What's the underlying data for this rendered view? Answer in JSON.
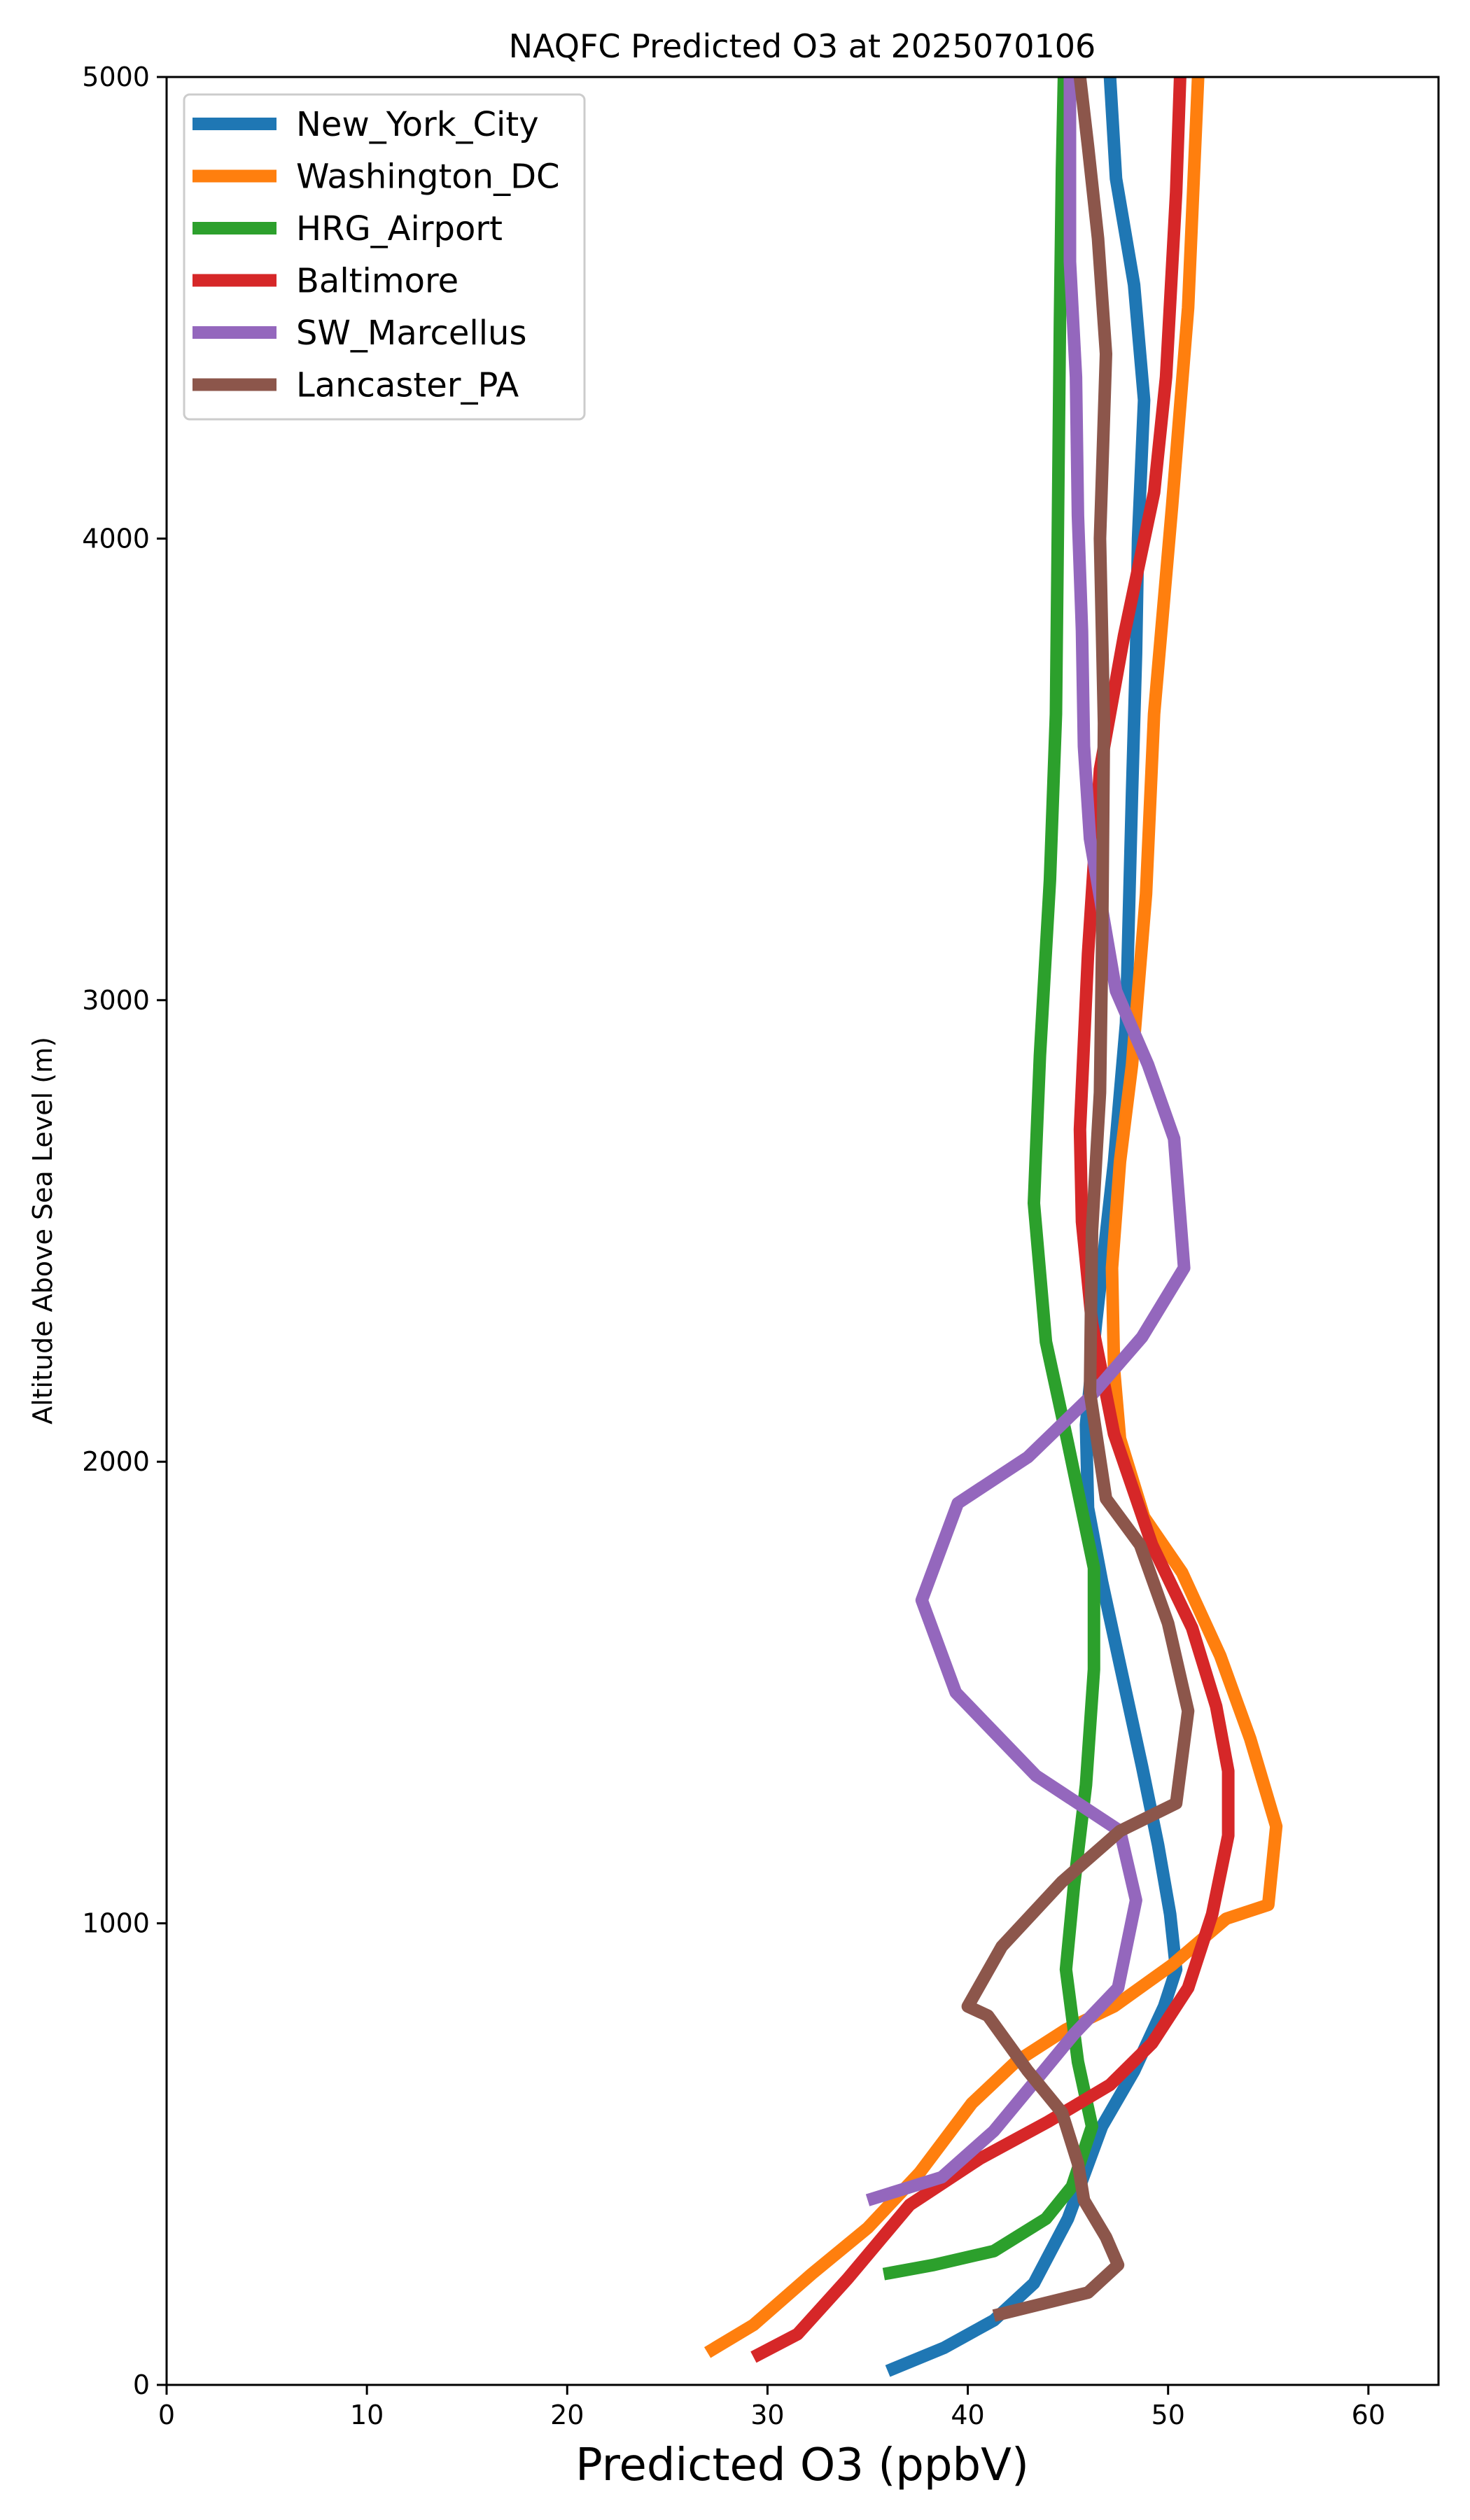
{
  "chart_data": {
    "type": "line",
    "title": "NAQFC Predicted O3 at 2025070106",
    "xlabel": "Predicted O3 (ppbV)",
    "ylabel": "Altitude Above Sea Level (m)",
    "xlim": [
      0,
      63.5
    ],
    "ylim": [
      0,
      5000
    ],
    "xticks": [
      0,
      10,
      20,
      30,
      40,
      50,
      60
    ],
    "yticks": [
      0,
      1000,
      2000,
      3000,
      4000,
      5000
    ],
    "grid": false,
    "legend_position": "top-left",
    "series": [
      {
        "name": "New_York_City",
        "color": "#1f77b4",
        "x": [
          36.0,
          38.8,
          41.3,
          43.3,
          45.0,
          46.7,
          48.3,
          49.8,
          50.4,
          50.1,
          49.5,
          48.7,
          47.6,
          46.7,
          46.0,
          45.9,
          46.4,
          47.3,
          47.9,
          48.2,
          48.4,
          48.5,
          48.8,
          48.3,
          47.4,
          47.1
        ],
        "y": [
          30,
          80,
          140,
          220,
          360,
          560,
          680,
          820,
          900,
          1020,
          1170,
          1340,
          1560,
          1740,
          1900,
          2080,
          2300,
          2650,
          2950,
          3450,
          3750,
          4000,
          4300,
          4550,
          4780,
          5000
        ]
      },
      {
        "name": "Washington_DC",
        "color": "#ff7f0e",
        "x": [
          27.0,
          29.3,
          32.2,
          35.0,
          37.6,
          40.2,
          42.4,
          44.9,
          47.3,
          50.2,
          52.9,
          55.0,
          55.4,
          54.1,
          52.6,
          50.7,
          48.8,
          47.6,
          47.3,
          47.2,
          47.6,
          48.2,
          48.9,
          49.3,
          50.2,
          51.0,
          51.5
        ],
        "y": [
          70,
          130,
          240,
          340,
          460,
          610,
          700,
          770,
          820,
          910,
          1010,
          1040,
          1210,
          1400,
          1580,
          1760,
          1880,
          2050,
          2200,
          2420,
          2650,
          2860,
          3230,
          3620,
          4070,
          4500,
          5000
        ]
      },
      {
        "name": "HRG_Airport",
        "color": "#2ca02c",
        "x": [
          35.8,
          38.3,
          41.3,
          43.9,
          45.2,
          46.2,
          45.5,
          44.9,
          45.3,
          45.9,
          46.3,
          46.3,
          45.0,
          43.9,
          43.3,
          43.6,
          44.1,
          44.4,
          44.5,
          44.6,
          44.7,
          44.8
        ],
        "y": [
          240,
          260,
          290,
          360,
          430,
          560,
          700,
          900,
          1080,
          1300,
          1550,
          1770,
          2040,
          2260,
          2560,
          2880,
          3260,
          3620,
          4030,
          4470,
          4800,
          5000
        ]
      },
      {
        "name": "Baltimore",
        "color": "#d62728",
        "x": [
          29.3,
          31.5,
          34.0,
          37.1,
          40.6,
          44.0,
          47.1,
          49.2,
          51.0,
          52.2,
          53.0,
          53.0,
          52.4,
          51.2,
          49.2,
          47.3,
          46.2,
          45.7,
          45.6,
          46.0,
          46.6,
          47.8,
          49.3,
          49.9,
          50.4,
          50.6
        ],
        "y": [
          60,
          110,
          230,
          390,
          490,
          570,
          650,
          740,
          860,
          1020,
          1190,
          1330,
          1470,
          1640,
          1820,
          2060,
          2300,
          2520,
          2720,
          3100,
          3500,
          3790,
          4100,
          4350,
          4750,
          5000
        ]
      },
      {
        "name": "SW_Marcellus",
        "color": "#9467bd",
        "x": [
          35.0,
          38.7,
          41.3,
          43.4,
          45.3,
          47.5,
          48.4,
          47.6,
          43.4,
          39.4,
          37.7,
          39.5,
          43.0,
          46.1,
          48.7,
          50.8,
          50.3,
          49.0,
          47.4,
          46.1,
          45.8,
          45.7,
          45.5,
          45.4,
          45.1,
          45.1,
          45.1
        ],
        "y": [
          400,
          450,
          550,
          660,
          760,
          860,
          1050,
          1200,
          1320,
          1500,
          1700,
          1910,
          2010,
          2140,
          2270,
          2420,
          2700,
          2860,
          3020,
          3350,
          3550,
          3800,
          4050,
          4350,
          4600,
          4900,
          5000
        ]
      },
      {
        "name": "Lancaster_PA",
        "color": "#8c564b",
        "x": [
          41.3,
          46.0,
          47.5,
          46.9,
          45.8,
          45.5,
          44.7,
          43.0,
          41.0,
          40.0,
          41.7,
          44.7,
          47.6,
          50.4,
          51.0,
          50.0,
          48.6,
          46.9,
          46.1,
          46.2,
          46.6,
          46.7,
          46.8,
          46.6,
          46.9,
          46.5,
          46.0,
          45.6
        ],
        "y": [
          150,
          200,
          260,
          320,
          400,
          480,
          590,
          680,
          800,
          820,
          950,
          1090,
          1200,
          1260,
          1460,
          1650,
          1820,
          1920,
          2150,
          2500,
          2800,
          3100,
          3600,
          4000,
          4400,
          4650,
          4850,
          5000
        ]
      }
    ]
  }
}
